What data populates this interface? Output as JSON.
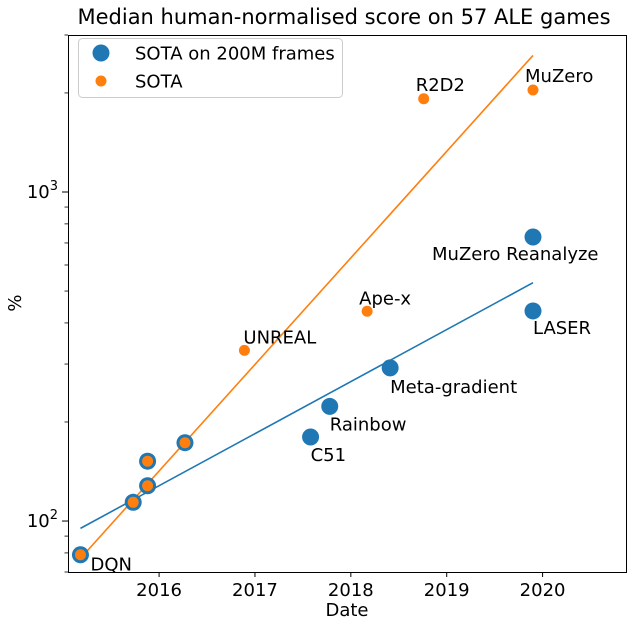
{
  "chart_data": {
    "type": "scatter",
    "title": "Median human-normalised score on 57 ALE games",
    "xlabel": "Date",
    "ylabel": "%",
    "yscale": "log",
    "xlim": [
      2015.05,
      2020.87
    ],
    "ylim": [
      70,
      3000
    ],
    "x_ticks": [
      {
        "value": 2016,
        "label": "2016"
      },
      {
        "value": 2017,
        "label": "2017"
      },
      {
        "value": 2018,
        "label": "2018"
      },
      {
        "value": 2019,
        "label": "2019"
      },
      {
        "value": 2020,
        "label": "2020"
      }
    ],
    "y_ticks": [
      {
        "value": 100,
        "base": "10",
        "exp": "2"
      },
      {
        "value": 1000,
        "base": "10",
        "exp": "3"
      }
    ],
    "legend_position": "top-left",
    "grid": false,
    "series": [
      {
        "name": "SOTA on 200M frames",
        "color": "#1f77b4",
        "marker": "large-circle",
        "points": [
          {
            "x": 2015.18,
            "y": 79,
            "label": "DQN"
          },
          {
            "x": 2015.73,
            "y": 114,
            "label": ""
          },
          {
            "x": 2015.88,
            "y": 128,
            "label": ""
          },
          {
            "x": 2015.88,
            "y": 152,
            "label": ""
          },
          {
            "x": 2016.27,
            "y": 173,
            "label": ""
          },
          {
            "x": 2017.58,
            "y": 180,
            "label": "C51"
          },
          {
            "x": 2017.78,
            "y": 223,
            "label": "Rainbow"
          },
          {
            "x": 2018.41,
            "y": 292,
            "label": "Meta-gradient"
          },
          {
            "x": 2019.9,
            "y": 435,
            "label": "LASER"
          },
          {
            "x": 2019.9,
            "y": 730,
            "label": "MuZero Reanalyze"
          }
        ],
        "fit": {
          "x": [
            2015.18,
            2019.9
          ],
          "y": [
            95,
            530
          ]
        }
      },
      {
        "name": "SOTA",
        "color": "#ff7f0e",
        "marker": "small-circle",
        "points": [
          {
            "x": 2015.18,
            "y": 79,
            "label": ""
          },
          {
            "x": 2015.73,
            "y": 114,
            "label": ""
          },
          {
            "x": 2015.88,
            "y": 128,
            "label": ""
          },
          {
            "x": 2015.88,
            "y": 152,
            "label": ""
          },
          {
            "x": 2016.27,
            "y": 173,
            "label": ""
          },
          {
            "x": 2016.89,
            "y": 330,
            "label": "UNREAL"
          },
          {
            "x": 2018.17,
            "y": 434,
            "label": "Ape-x"
          },
          {
            "x": 2018.76,
            "y": 1920,
            "label": "R2D2"
          },
          {
            "x": 2019.9,
            "y": 2041,
            "label": "MuZero"
          }
        ],
        "fit": {
          "x": [
            2015.18,
            2019.9
          ],
          "y": [
            77,
            2600
          ]
        }
      }
    ]
  }
}
